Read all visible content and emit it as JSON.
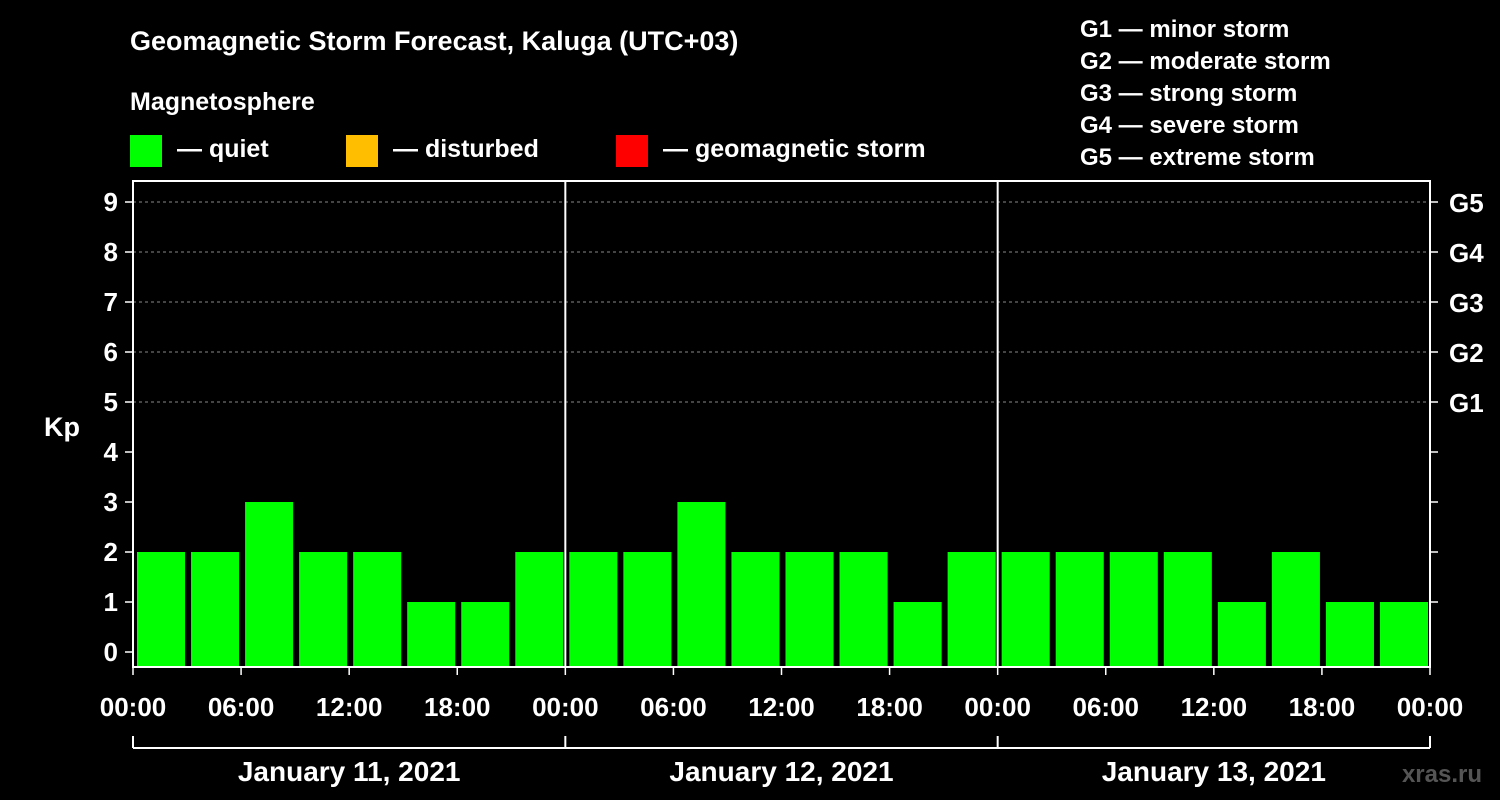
{
  "header": {
    "title": "Geomagnetic Storm Forecast, Kaluga (UTC+03)",
    "section_label": "Magnetosphere"
  },
  "legend": [
    {
      "label": "— quiet",
      "color": "#00ff00"
    },
    {
      "label": "— disturbed",
      "color": "#ffbf00"
    },
    {
      "label": "— geomagnetic storm",
      "color": "#ff0000"
    }
  ],
  "storm_scale": [
    "G1 — minor storm",
    "G2 — moderate storm",
    "G3 — strong storm",
    "G4 — severe storm",
    "G5 — extreme storm"
  ],
  "watermark": "xras.ru",
  "chart_data": {
    "type": "bar",
    "ylabel": "Kp",
    "ylim": [
      0,
      9
    ],
    "y_ticks": [
      "0",
      "1",
      "2",
      "3",
      "4",
      "5",
      "6",
      "7",
      "8",
      "9"
    ],
    "right_ticks": [
      "G1",
      "G2",
      "G3",
      "G4",
      "G5"
    ],
    "grid": "dashed horizontal lines at Kp 5–9",
    "x_tick_labels": [
      "00:00",
      "06:00",
      "12:00",
      "18:00",
      "00:00",
      "06:00",
      "12:00",
      "18:00",
      "00:00",
      "06:00",
      "12:00",
      "18:00",
      "00:00"
    ],
    "days": [
      "January 11, 2021",
      "January 12, 2021",
      "January 13, 2021"
    ],
    "interval_hours": 3,
    "series": [
      {
        "values": [
          2,
          2,
          3,
          2,
          2,
          1,
          1,
          2,
          2,
          2,
          3,
          2,
          2,
          2,
          1,
          2,
          2,
          2,
          2,
          2,
          1,
          2,
          1,
          1
        ],
        "color": "#00ff00"
      }
    ]
  }
}
